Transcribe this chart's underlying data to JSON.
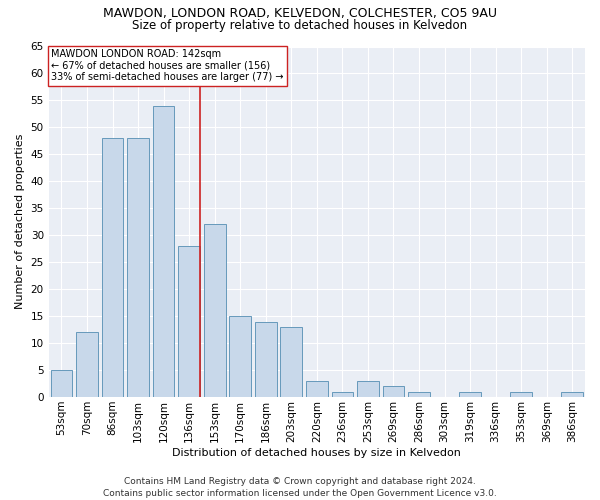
{
  "title1": "MAWDON, LONDON ROAD, KELVEDON, COLCHESTER, CO5 9AU",
  "title2": "Size of property relative to detached houses in Kelvedon",
  "xlabel": "Distribution of detached houses by size in Kelvedon",
  "ylabel": "Number of detached properties",
  "footnote": "Contains HM Land Registry data © Crown copyright and database right 2024.\nContains public sector information licensed under the Open Government Licence v3.0.",
  "bar_labels": [
    "53sqm",
    "70sqm",
    "86sqm",
    "103sqm",
    "120sqm",
    "136sqm",
    "153sqm",
    "170sqm",
    "186sqm",
    "203sqm",
    "220sqm",
    "236sqm",
    "253sqm",
    "269sqm",
    "286sqm",
    "303sqm",
    "319sqm",
    "336sqm",
    "353sqm",
    "369sqm",
    "386sqm"
  ],
  "bar_values": [
    5,
    12,
    48,
    48,
    54,
    28,
    32,
    15,
    14,
    13,
    3,
    1,
    3,
    2,
    1,
    0,
    1,
    0,
    1,
    0,
    1
  ],
  "bar_color": "#c8d8ea",
  "bar_edge_color": "#6699bb",
  "background_color": "#eaeef5",
  "grid_color": "#ffffff",
  "annotation_box_text": "MAWDON LONDON ROAD: 142sqm\n← 67% of detached houses are smaller (156)\n33% of semi-detached houses are larger (77) →",
  "redline_x": 5.42,
  "redline_color": "#cc2222",
  "ylim": [
    0,
    65
  ],
  "yticks": [
    0,
    5,
    10,
    15,
    20,
    25,
    30,
    35,
    40,
    45,
    50,
    55,
    60,
    65
  ],
  "title1_fontsize": 9,
  "title2_fontsize": 8.5,
  "xlabel_fontsize": 8,
  "ylabel_fontsize": 8,
  "tick_fontsize": 7.5,
  "footnote_fontsize": 6.5
}
